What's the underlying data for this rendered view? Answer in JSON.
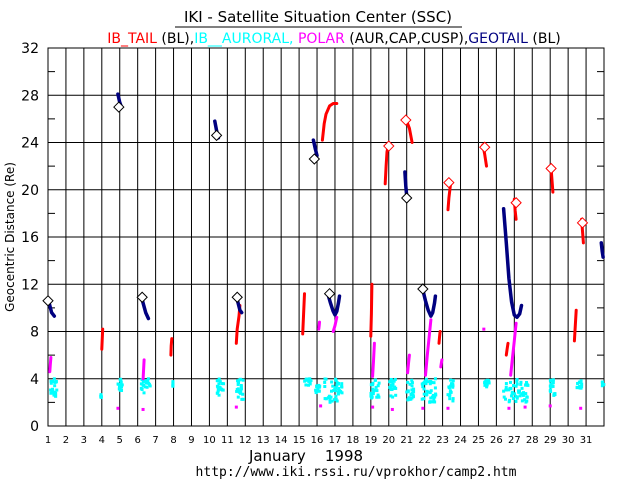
{
  "header": {
    "title": "IKI - Satellite Situation Center (SSC)",
    "subtitle_parts": [
      {
        "text": "IB_TAIL",
        "color": "#ff0000"
      },
      {
        "text": " (BL),",
        "color": "#000000"
      },
      {
        "text": "IB__AURORAL,",
        "color": "#00ffff"
      },
      {
        "text": " POLAR",
        "color": "#ff00ff"
      },
      {
        "text": " (AUR,CAP,CUSP),",
        "color": "#000000"
      },
      {
        "text": "GEOTAIL",
        "color": "#000080"
      },
      {
        "text": " (BL)",
        "color": "#000000"
      }
    ]
  },
  "footer": {
    "month_year": "January    1998",
    "url": "http://www.iki.rssi.ru/vprokhor/camp2.htm"
  },
  "colors": {
    "ib_tail": "#ff0000",
    "ib_auroral": "#00ffff",
    "polar": "#ff00ff",
    "geotail": "#000080"
  },
  "chart_data": {
    "type": "scatter",
    "ylabel": "Geocentric Distance (Re)",
    "xlabel": "January    1998",
    "xlim": [
      1,
      32
    ],
    "ylim": [
      0,
      32
    ],
    "grid": true,
    "y_ticks": [
      "0",
      "4",
      "8",
      "12",
      "16",
      "20",
      "24",
      "28",
      "32"
    ],
    "x_ticks": [
      "1",
      "2",
      "3",
      "4",
      "5",
      "6",
      "7",
      "8",
      "9",
      "10",
      "11",
      "12",
      "13",
      "14",
      "15",
      "16",
      "17",
      "18",
      "19",
      "20",
      "21",
      "22",
      "23",
      "24",
      "25",
      "26",
      "27",
      "28",
      "29",
      "30",
      "31"
    ],
    "series": [
      {
        "name": "IB_TAIL",
        "color": "#ff0000",
        "segments": [
          [
            [
              4.0,
              6.5
            ],
            [
              4.02,
              7.3
            ],
            [
              4.05,
              8.2
            ]
          ],
          [
            [
              7.85,
              6.0
            ],
            [
              7.87,
              6.8
            ],
            [
              7.9,
              7.4
            ]
          ],
          [
            [
              11.5,
              7.0
            ],
            [
              11.55,
              8.2
            ],
            [
              11.65,
              9.3
            ],
            [
              11.7,
              10.2
            ]
          ],
          [
            [
              15.2,
              7.8
            ],
            [
              15.25,
              9.5
            ],
            [
              15.3,
              11.2
            ]
          ],
          [
            [
              16.3,
              24.2
            ],
            [
              16.4,
              25.6
            ],
            [
              16.5,
              26.4
            ],
            [
              16.7,
              27.1
            ],
            [
              16.9,
              27.3
            ],
            [
              17.1,
              27.3
            ]
          ],
          [
            [
              19.0,
              7.6
            ],
            [
              19.03,
              9.5
            ],
            [
              19.06,
              12.0
            ]
          ],
          [
            [
              19.8,
              20.5
            ],
            [
              19.85,
              22.0
            ],
            [
              19.9,
              23.2
            ],
            [
              20.0,
              24.0
            ]
          ],
          [
            [
              20.9,
              26.0
            ],
            [
              21.0,
              25.8
            ],
            [
              21.15,
              25.2
            ],
            [
              21.3,
              24.0
            ]
          ],
          [
            [
              22.8,
              7.0
            ],
            [
              22.83,
              7.5
            ],
            [
              22.86,
              8.0
            ]
          ],
          [
            [
              23.3,
              18.3
            ],
            [
              23.35,
              19.3
            ],
            [
              23.45,
              20.6
            ]
          ],
          [
            [
              25.25,
              23.8
            ],
            [
              25.35,
              23.0
            ],
            [
              25.45,
              22.0
            ]
          ],
          [
            [
              26.55,
              6.0
            ],
            [
              26.6,
              6.5
            ],
            [
              26.65,
              7.0
            ]
          ],
          [
            [
              27.0,
              19.2
            ],
            [
              27.05,
              18.2
            ],
            [
              27.1,
              17.5
            ]
          ],
          [
            [
              29.05,
              21.8
            ],
            [
              29.1,
              20.8
            ],
            [
              29.15,
              19.8
            ]
          ],
          [
            [
              30.35,
              7.2
            ],
            [
              30.4,
              8.5
            ],
            [
              30.45,
              9.8
            ]
          ],
          [
            [
              30.75,
              17.5
            ],
            [
              30.8,
              16.5
            ],
            [
              30.85,
              15.5
            ]
          ]
        ],
        "diamonds": [
          [
            20.0,
            23.7
          ],
          [
            20.95,
            25.9
          ],
          [
            23.35,
            20.6
          ],
          [
            25.35,
            23.6
          ],
          [
            27.1,
            18.9
          ],
          [
            29.05,
            21.8
          ],
          [
            30.8,
            17.2
          ]
        ]
      },
      {
        "name": "GEOTAIL",
        "color": "#000080",
        "segments": [
          [
            [
              1.0,
              10.8
            ],
            [
              1.1,
              10.2
            ],
            [
              1.2,
              9.6
            ],
            [
              1.35,
              9.3
            ]
          ],
          [
            [
              4.9,
              28.1
            ],
            [
              5.0,
              27.4
            ],
            [
              5.1,
              27.0
            ]
          ],
          [
            [
              6.2,
              11.0
            ],
            [
              6.3,
              10.4
            ],
            [
              6.45,
              9.6
            ],
            [
              6.6,
              9.1
            ]
          ],
          [
            [
              10.3,
              25.8
            ],
            [
              10.4,
              25.0
            ],
            [
              10.5,
              24.4
            ]
          ],
          [
            [
              11.5,
              11.0
            ],
            [
              11.6,
              10.4
            ],
            [
              11.7,
              9.8
            ],
            [
              11.8,
              9.6
            ]
          ],
          [
            [
              15.8,
              24.2
            ],
            [
              15.9,
              23.5
            ],
            [
              16.0,
              22.9
            ]
          ],
          [
            [
              16.6,
              11.2
            ],
            [
              16.75,
              10.4
            ],
            [
              16.9,
              9.7
            ],
            [
              17.0,
              9.4
            ],
            [
              17.1,
              9.7
            ],
            [
              17.2,
              10.5
            ],
            [
              17.25,
              11.0
            ]
          ],
          [
            [
              20.9,
              21.5
            ],
            [
              20.95,
              20.3
            ],
            [
              21.0,
              19.5
            ]
          ],
          [
            [
              21.9,
              11.5
            ],
            [
              22.05,
              10.6
            ],
            [
              22.2,
              9.8
            ],
            [
              22.35,
              9.3
            ],
            [
              22.45,
              9.6
            ],
            [
              22.55,
              10.4
            ],
            [
              22.6,
              11.0
            ]
          ],
          [
            [
              26.4,
              18.4
            ],
            [
              26.55,
              15.5
            ],
            [
              26.7,
              12.5
            ],
            [
              26.85,
              10.5
            ],
            [
              27.0,
              9.4
            ],
            [
              27.15,
              9.2
            ],
            [
              27.3,
              9.5
            ],
            [
              27.4,
              10.2
            ]
          ],
          [
            [
              31.85,
              15.5
            ],
            [
              31.9,
              14.8
            ],
            [
              31.95,
              14.3
            ]
          ]
        ],
        "diamonds": [
          [
            1.0,
            10.6
          ],
          [
            4.95,
            27.0
          ],
          [
            6.25,
            10.9
          ],
          [
            10.4,
            24.6
          ],
          [
            11.55,
            10.9
          ],
          [
            15.85,
            22.6
          ],
          [
            16.7,
            11.2
          ],
          [
            21.0,
            19.3
          ],
          [
            21.9,
            11.6
          ]
        ]
      },
      {
        "name": "IB__AURORAL",
        "color": "#00ffff",
        "clusters": [
          [
            1.1,
            1.5,
            2.2,
            4.0
          ],
          [
            3.9,
            4.0,
            2.4,
            2.7
          ],
          [
            4.9,
            5.2,
            3.0,
            4.0
          ],
          [
            6.2,
            6.7,
            2.8,
            4.0
          ],
          [
            7.9,
            8.0,
            3.3,
            3.8
          ],
          [
            10.4,
            10.8,
            2.6,
            4.0
          ],
          [
            11.5,
            11.9,
            2.2,
            4.0
          ],
          [
            15.3,
            15.7,
            3.4,
            4.0
          ],
          [
            15.9,
            16.2,
            2.8,
            3.5
          ],
          [
            16.4,
            17.4,
            2.0,
            4.0
          ],
          [
            19.0,
            19.5,
            2.3,
            4.0
          ],
          [
            20.0,
            20.4,
            2.4,
            4.0
          ],
          [
            21.0,
            21.4,
            2.2,
            4.0
          ],
          [
            21.8,
            22.7,
            2.0,
            4.0
          ],
          [
            23.3,
            23.6,
            2.1,
            3.9
          ],
          [
            25.3,
            25.6,
            3.2,
            3.9
          ],
          [
            26.4,
            27.8,
            2.0,
            4.0
          ],
          [
            29.0,
            29.3,
            2.5,
            4.0
          ],
          [
            30.5,
            30.8,
            3.2,
            3.9
          ],
          [
            31.9,
            32.0,
            3.4,
            3.8
          ]
        ]
      },
      {
        "name": "POLAR",
        "color": "#ff00ff",
        "segments": [
          [
            [
              1.1,
              4.6
            ],
            [
              1.13,
              5.2
            ],
            [
              1.16,
              5.8
            ]
          ],
          [
            [
              6.3,
              4.0
            ],
            [
              6.33,
              4.8
            ],
            [
              6.36,
              5.6
            ]
          ],
          [
            [
              16.1,
              8.2
            ],
            [
              16.12,
              8.5
            ],
            [
              16.14,
              8.8
            ]
          ],
          [
            [
              16.9,
              8.0
            ],
            [
              17.0,
              8.5
            ],
            [
              17.1,
              9.2
            ]
          ],
          [
            [
              19.1,
              4.2
            ],
            [
              19.15,
              5.5
            ],
            [
              19.2,
              7.0
            ]
          ],
          [
            [
              21.05,
              4.5
            ],
            [
              21.1,
              5.3
            ],
            [
              21.15,
              6.0
            ]
          ],
          [
            [
              22.05,
              4.3
            ],
            [
              22.15,
              6.0
            ],
            [
              22.25,
              7.5
            ],
            [
              22.35,
              9.0
            ]
          ],
          [
            [
              22.9,
              5.0
            ],
            [
              22.93,
              5.3
            ],
            [
              22.96,
              5.6
            ]
          ],
          [
            [
              26.8,
              4.3
            ],
            [
              26.9,
              5.8
            ],
            [
              27.0,
              7.2
            ],
            [
              27.1,
              8.7
            ]
          ]
        ],
        "dots": [
          [
            4.9,
            1.5
          ],
          [
            6.3,
            1.4
          ],
          [
            11.5,
            1.6
          ],
          [
            16.2,
            1.7
          ],
          [
            19.1,
            1.6
          ],
          [
            20.2,
            1.4
          ],
          [
            21.9,
            1.5
          ],
          [
            23.3,
            1.5
          ],
          [
            25.3,
            8.2
          ],
          [
            26.7,
            1.5
          ],
          [
            27.6,
            1.6
          ],
          [
            29.0,
            1.7
          ],
          [
            30.7,
            1.5
          ]
        ]
      }
    ]
  }
}
